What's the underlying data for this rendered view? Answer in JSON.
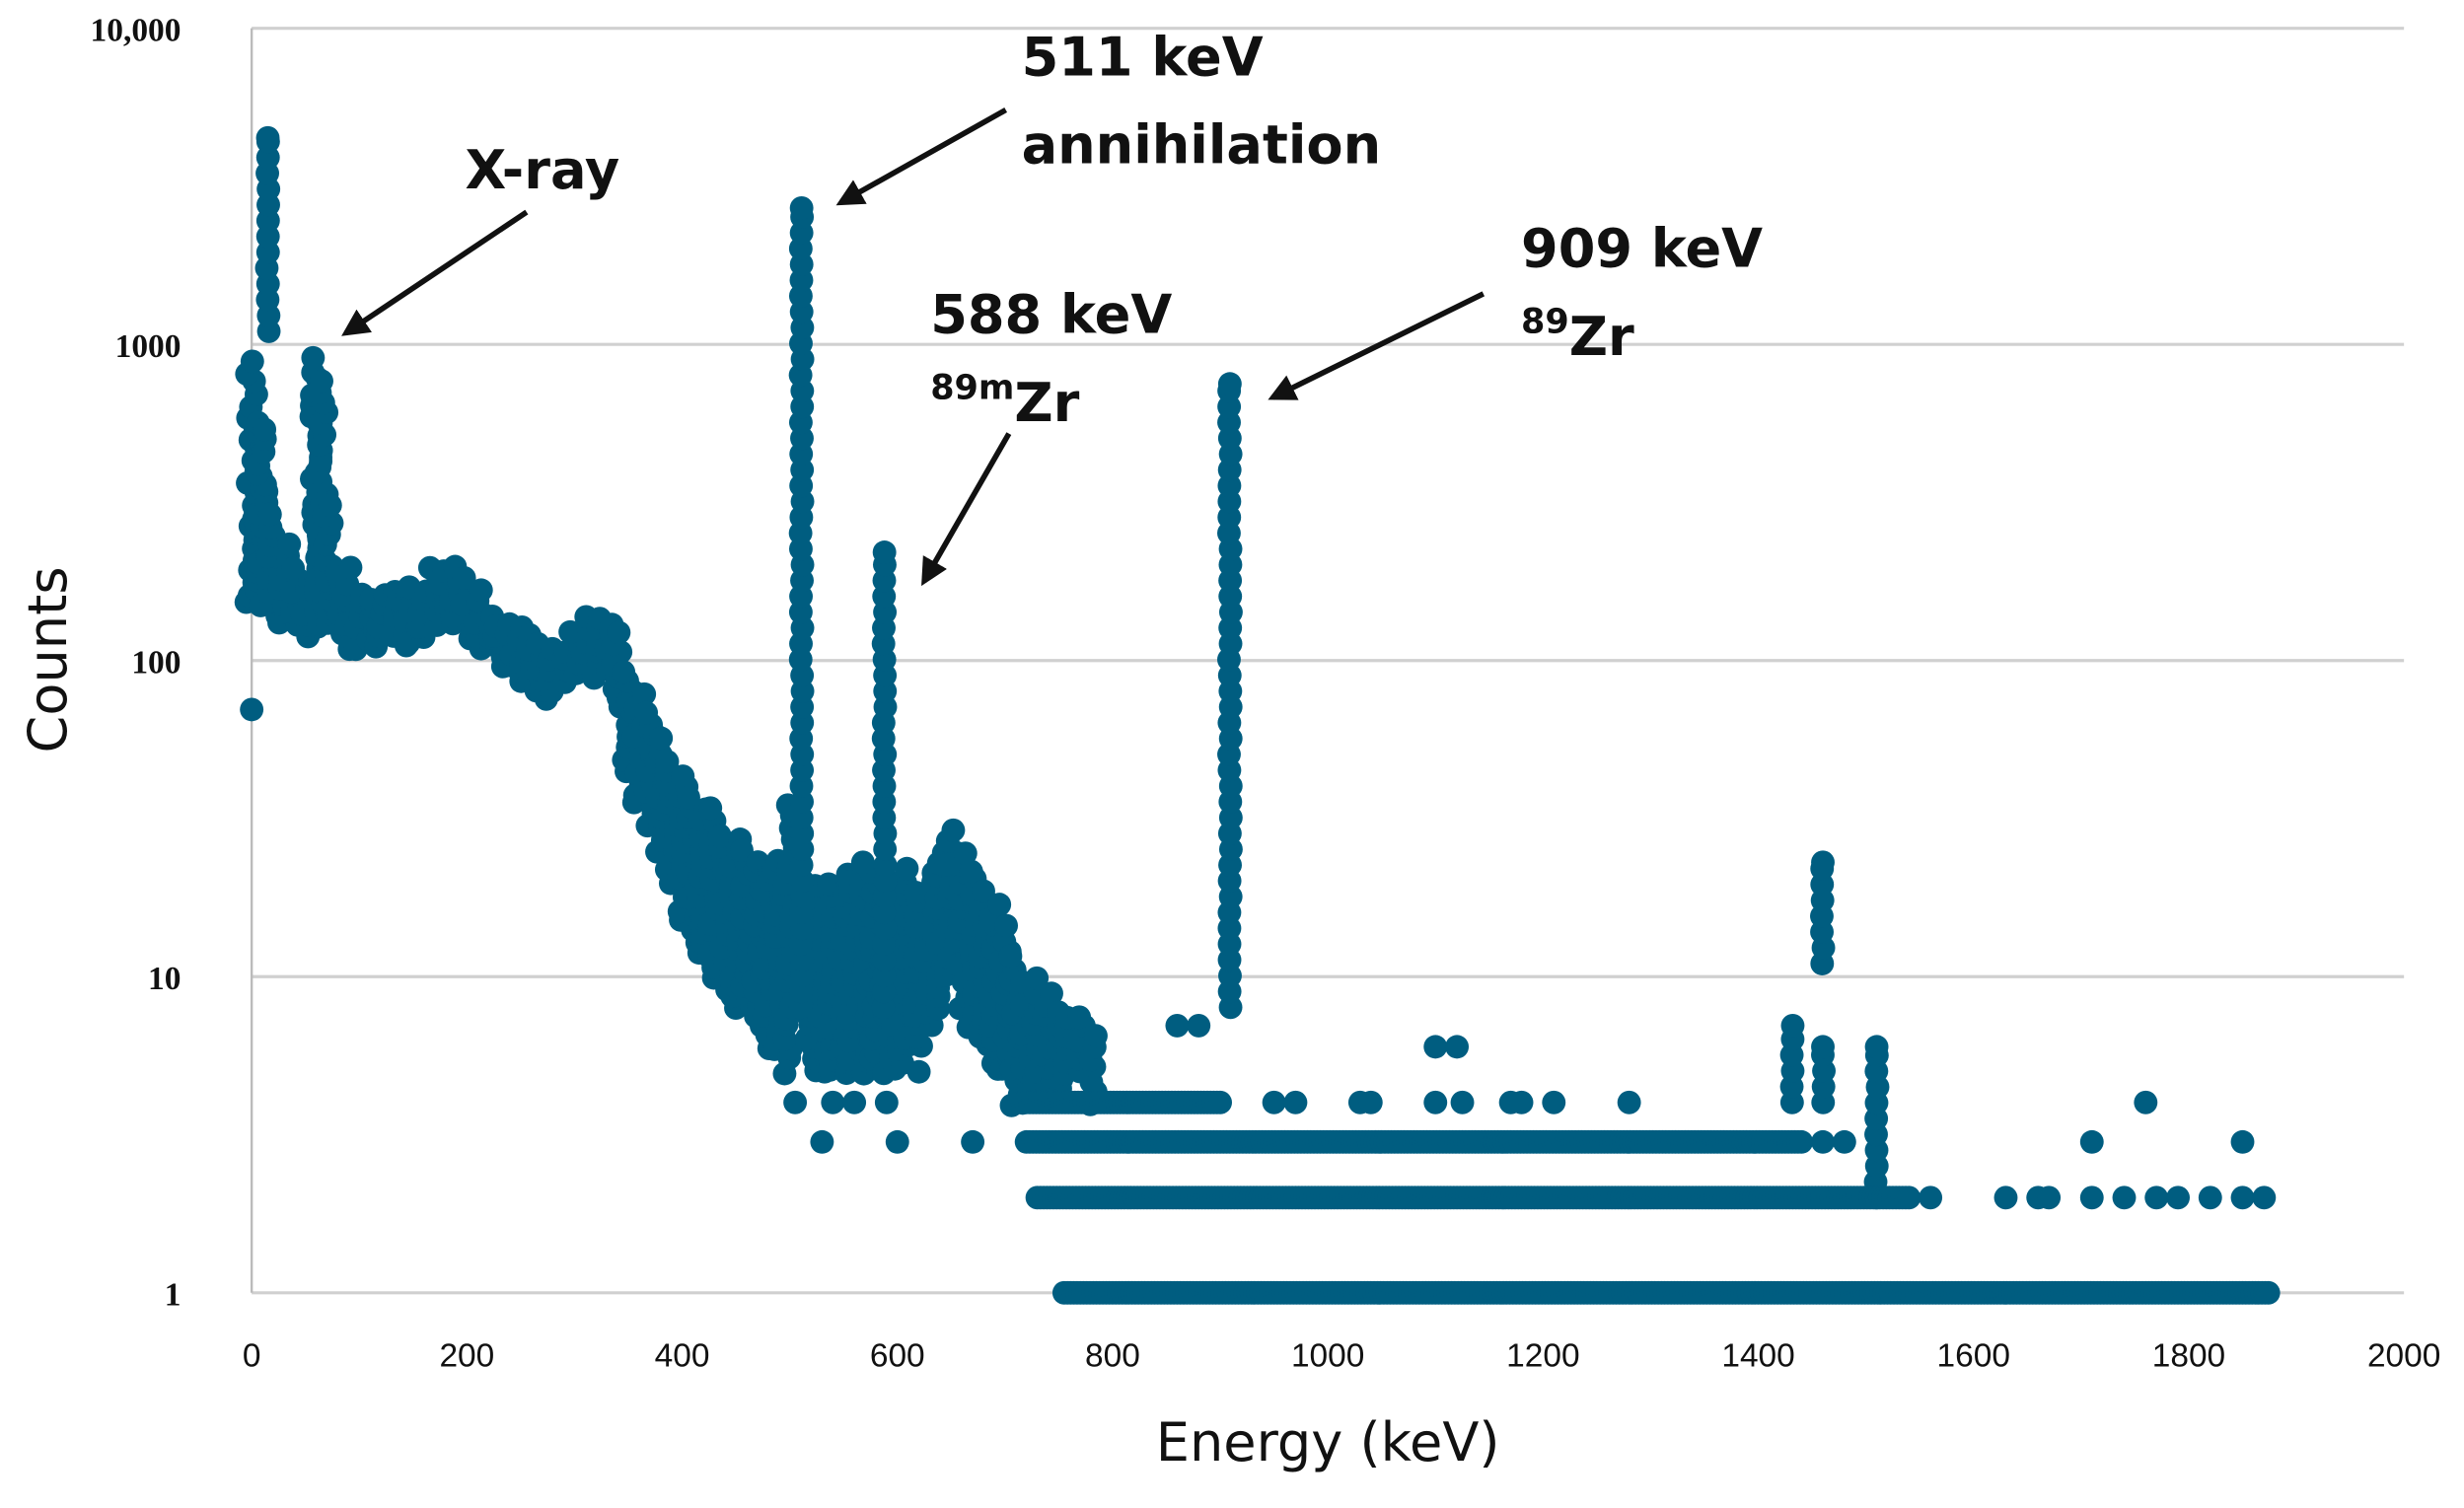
{
  "chart_data": {
    "type": "scatter",
    "title": "",
    "xlabel": "Energy (keV)",
    "ylabel": "Counts",
    "xlim": [
      0,
      2000
    ],
    "ylim": [
      1,
      10000
    ],
    "yscale": "log",
    "grid": "horizontal",
    "x_ticks": [
      "0",
      "200",
      "400",
      "600",
      "800",
      "1000",
      "1200",
      "1400",
      "1600",
      "1800",
      "2000"
    ],
    "y_ticks": [
      {
        "value": 10000,
        "label": "10,000"
      },
      {
        "value": 1000,
        "label": "1000"
      },
      {
        "value": 100,
        "label": "100"
      },
      {
        "value": 10,
        "label": "10"
      },
      {
        "value": 1,
        "label": "1"
      }
    ],
    "marker_color": "#005d80",
    "continuum_ranges_energy_low_high": [
      [
        0,
        150,
        900
      ],
      [
        5,
        170,
        600
      ],
      [
        10,
        150,
        550
      ],
      [
        20,
        140,
        300
      ],
      [
        30,
        130,
        230
      ],
      [
        40,
        130,
        200
      ],
      [
        50,
        120,
        190
      ],
      [
        60,
        130,
        950
      ],
      [
        65,
        130,
        800
      ],
      [
        70,
        130,
        330
      ],
      [
        80,
        120,
        200
      ],
      [
        90,
        110,
        200
      ],
      [
        100,
        110,
        170
      ],
      [
        110,
        115,
        170
      ],
      [
        120,
        110,
        175
      ],
      [
        130,
        120,
        170
      ],
      [
        140,
        110,
        165
      ],
      [
        150,
        115,
        175
      ],
      [
        160,
        120,
        170
      ],
      [
        170,
        130,
        200
      ],
      [
        180,
        140,
        200
      ],
      [
        190,
        130,
        195
      ],
      [
        200,
        120,
        180
      ],
      [
        210,
        110,
        170
      ],
      [
        220,
        110,
        150
      ],
      [
        230,
        95,
        140
      ],
      [
        240,
        95,
        135
      ],
      [
        250,
        85,
        130
      ],
      [
        260,
        80,
        125
      ],
      [
        270,
        75,
        120
      ],
      [
        280,
        80,
        115
      ],
      [
        290,
        85,
        115
      ],
      [
        300,
        90,
        130
      ],
      [
        310,
        90,
        140
      ],
      [
        320,
        90,
        145
      ],
      [
        330,
        95,
        140
      ],
      [
        340,
        70,
        130
      ],
      [
        350,
        45,
        100
      ],
      [
        360,
        35,
        80
      ],
      [
        370,
        30,
        70
      ],
      [
        380,
        25,
        60
      ],
      [
        390,
        20,
        50
      ],
      [
        400,
        15,
        45
      ],
      [
        410,
        13,
        40
      ],
      [
        420,
        12,
        35
      ],
      [
        430,
        10,
        35
      ],
      [
        440,
        9,
        30
      ],
      [
        450,
        8,
        28
      ],
      [
        460,
        8,
        25
      ],
      [
        470,
        7,
        25
      ],
      [
        480,
        6,
        22
      ],
      [
        490,
        6,
        25
      ],
      [
        500,
        5,
        35
      ],
      [
        520,
        5,
        20
      ],
      [
        530,
        5,
        18
      ],
      [
        540,
        5,
        20
      ],
      [
        550,
        5,
        22
      ],
      [
        560,
        5,
        20
      ],
      [
        570,
        5,
        20
      ],
      [
        580,
        5,
        22
      ],
      [
        590,
        5,
        18
      ],
      [
        600,
        5,
        20
      ],
      [
        610,
        6,
        22
      ],
      [
        620,
        6,
        20
      ],
      [
        630,
        7,
        22
      ],
      [
        640,
        8,
        25
      ],
      [
        650,
        10,
        30
      ],
      [
        660,
        8,
        25
      ],
      [
        670,
        7,
        22
      ],
      [
        680,
        6,
        20
      ],
      [
        690,
        5,
        18
      ],
      [
        700,
        5,
        15
      ],
      [
        710,
        4,
        12
      ],
      [
        720,
        4,
        10
      ],
      [
        730,
        4,
        10
      ],
      [
        740,
        4,
        9
      ],
      [
        750,
        4,
        8
      ],
      [
        760,
        5,
        8
      ],
      [
        770,
        5,
        8
      ],
      [
        780,
        4,
        7
      ]
    ],
    "peaks": [
      {
        "energy": 15,
        "min": 1100,
        "max": 4500
      },
      {
        "energy": 511,
        "min": 8,
        "max": 2700
      },
      {
        "energy": 588,
        "min": 8,
        "max": 220
      },
      {
        "energy": 909,
        "min": 8,
        "max": 750
      },
      {
        "energy": 1460,
        "min": 11,
        "max": 23
      },
      {
        "energy": 1460,
        "min": 4,
        "max": 6
      },
      {
        "energy": 1432,
        "min": 4,
        "max": 7
      },
      {
        "energy": 1510,
        "min": 2,
        "max": 6
      }
    ],
    "count_bands": [
      {
        "counts": 4,
        "from": 720,
        "to": 900
      },
      {
        "counts": 3,
        "from": 720,
        "to": 1440
      },
      {
        "counts": 2,
        "from": 730,
        "to": 1540
      },
      {
        "counts": 1,
        "from": 755,
        "to": 1875
      }
    ],
    "isolated_points": [
      [
        0,
        70
      ],
      [
        505,
        4
      ],
      [
        530,
        3
      ],
      [
        540,
        4
      ],
      [
        568,
        23
      ],
      [
        600,
        3
      ],
      [
        560,
        4
      ],
      [
        590,
        4
      ],
      [
        620,
        5
      ],
      [
        670,
        3
      ],
      [
        860,
        7
      ],
      [
        880,
        7
      ],
      [
        950,
        4
      ],
      [
        970,
        4
      ],
      [
        1030,
        4
      ],
      [
        1040,
        4
      ],
      [
        1100,
        6
      ],
      [
        1120,
        6
      ],
      [
        1100,
        4
      ],
      [
        1125,
        4
      ],
      [
        1170,
        4
      ],
      [
        1180,
        4
      ],
      [
        1210,
        4
      ],
      [
        1280,
        4
      ],
      [
        1560,
        2
      ],
      [
        1630,
        2
      ],
      [
        1660,
        2
      ],
      [
        1670,
        2
      ],
      [
        1710,
        3
      ],
      [
        1710,
        2
      ],
      [
        1740,
        2
      ],
      [
        1760,
        4
      ],
      [
        1770,
        2
      ],
      [
        1790,
        2
      ],
      [
        1820,
        2
      ],
      [
        1850,
        3
      ],
      [
        1850,
        2
      ],
      [
        1870,
        2
      ],
      [
        1480,
        3
      ],
      [
        1460,
        3
      ]
    ],
    "annotations": [
      {
        "id": "xray",
        "lines": [
          "X-ray"
        ]
      },
      {
        "id": "annihilation",
        "lines": [
          "511 keV",
          "annihilation"
        ]
      },
      {
        "id": "zr89m",
        "lines": [
          "588 keV"
        ],
        "isotope_mass": "89m",
        "isotope_symbol": "Zr"
      },
      {
        "id": "zr89",
        "lines": [
          "909 keV"
        ],
        "isotope_mass": "89",
        "isotope_symbol": "Zr"
      }
    ]
  }
}
